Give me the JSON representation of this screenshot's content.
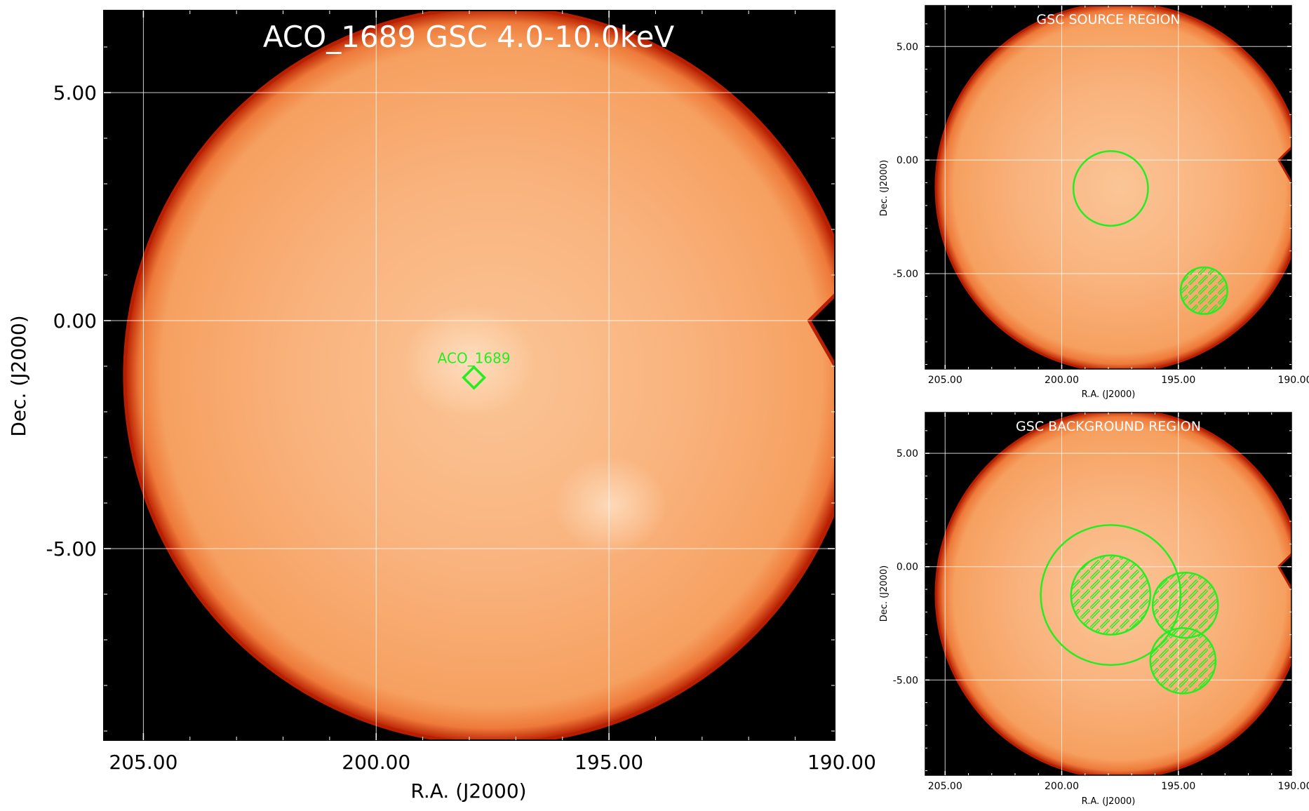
{
  "main_panel": {
    "title": "ACO_1689 GSC 4.0-10.0keV",
    "xlabel": "R.A. (J2000)",
    "ylabel": "Dec. (J2000)",
    "xticks": [
      "205.00",
      "200.00",
      "195.00",
      "190.00"
    ],
    "yticks": [
      "5.00",
      "0.00",
      "-5.00"
    ],
    "source_marker_label": "ACO_1689"
  },
  "source_panel": {
    "title": "GSC SOURCE REGION",
    "xlabel": "R.A. (J2000)",
    "ylabel": "Dec. (J2000)",
    "xticks": [
      "205.00",
      "200.00",
      "195.00",
      "190.00"
    ],
    "yticks": [
      "5.00",
      "0.00",
      "-5.00"
    ]
  },
  "background_panel": {
    "title": "GSC BACKGROUND REGION",
    "xlabel": "R.A. (J2000)",
    "ylabel": "Dec. (J2000)",
    "xticks": [
      "205.00",
      "200.00",
      "195.00",
      "190.00"
    ],
    "yticks": [
      "5.00",
      "0.00",
      "-5.00"
    ]
  },
  "colors": {
    "image_fill": "#f7a868",
    "image_edge": "#b81e00",
    "sky_background": "#000000",
    "region_green": "#22ee22",
    "grid": "#ffffff"
  },
  "chart_data": [
    {
      "type": "heatmap",
      "name": "main",
      "title": "ACO_1689 GSC 4.0-10.0keV",
      "xlabel": "R.A. (J2000)",
      "ylabel": "Dec. (J2000)",
      "xlim": [
        205.85,
        190.15
      ],
      "ylim": [
        -9.2,
        6.8
      ],
      "x_inverted": true,
      "xticks": [
        205,
        200,
        195,
        190
      ],
      "yticks": [
        5,
        0,
        -5
      ],
      "grid": true,
      "fov_center": [
        197.5,
        -1.2
      ],
      "fov_radius_deg": 7.9,
      "sources": [
        {
          "label": "ACO_1689",
          "ra": 197.9,
          "dec": -1.25,
          "marker": "diamond"
        }
      ]
    },
    {
      "type": "heatmap",
      "name": "source_region",
      "title": "GSC SOURCE REGION",
      "xlabel": "R.A. (J2000)",
      "ylabel": "Dec. (J2000)",
      "xlim": [
        205.85,
        190.15
      ],
      "ylim": [
        -9.2,
        6.8
      ],
      "x_inverted": true,
      "xticks": [
        205,
        200,
        195,
        190
      ],
      "yticks": [
        5,
        0,
        -5
      ],
      "grid": true,
      "regions": [
        {
          "kind": "include",
          "ra": 197.9,
          "dec": -1.25,
          "radius_deg": 1.6,
          "hatched": false
        },
        {
          "kind": "exclude",
          "ra": 193.9,
          "dec": -5.75,
          "radius_deg": 1.0,
          "hatched": true
        }
      ]
    },
    {
      "type": "heatmap",
      "name": "background_region",
      "title": "GSC BACKGROUND REGION",
      "xlabel": "R.A. (J2000)",
      "ylabel": "Dec. (J2000)",
      "xlim": [
        205.85,
        190.15
      ],
      "ylim": [
        -9.2,
        6.8
      ],
      "x_inverted": true,
      "xticks": [
        205,
        200,
        195,
        190
      ],
      "yticks": [
        5,
        0,
        -5
      ],
      "grid": true,
      "regions": [
        {
          "kind": "include",
          "ra": 197.9,
          "dec": -1.25,
          "radius_deg": 3.0,
          "hatched": false
        },
        {
          "kind": "exclude",
          "ra": 197.9,
          "dec": -1.25,
          "radius_deg": 1.7,
          "hatched": true
        },
        {
          "kind": "exclude",
          "ra": 194.7,
          "dec": -1.7,
          "radius_deg": 1.4,
          "hatched": true
        },
        {
          "kind": "exclude",
          "ra": 194.8,
          "dec": -4.15,
          "radius_deg": 1.4,
          "hatched": true
        }
      ]
    }
  ]
}
